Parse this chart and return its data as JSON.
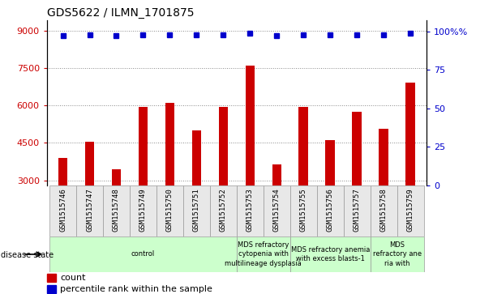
{
  "title": "GDS5622 / ILMN_1701875",
  "samples": [
    "GSM1515746",
    "GSM1515747",
    "GSM1515748",
    "GSM1515749",
    "GSM1515750",
    "GSM1515751",
    "GSM1515752",
    "GSM1515753",
    "GSM1515754",
    "GSM1515755",
    "GSM1515756",
    "GSM1515757",
    "GSM1515758",
    "GSM1515759"
  ],
  "counts": [
    3900,
    4550,
    3450,
    5950,
    6100,
    5000,
    5950,
    7600,
    3650,
    5950,
    4600,
    5750,
    5050,
    6900
  ],
  "percentile_ranks": [
    97,
    98,
    97,
    98,
    98,
    98,
    98,
    99,
    97,
    98,
    98,
    98,
    98,
    99
  ],
  "ylim_left": [
    2800,
    9400
  ],
  "ylim_right": [
    0,
    107
  ],
  "yticks_left": [
    3000,
    4500,
    6000,
    7500,
    9000
  ],
  "yticks_right": [
    0,
    25,
    50,
    75,
    100
  ],
  "bar_color": "#cc0000",
  "dot_color": "#0000cc",
  "bg_color": "#e8e8e8",
  "plot_bg": "white",
  "group_boundaries": [
    {
      "label": "control",
      "start": 0,
      "end": 7
    },
    {
      "label": "MDS refractory\ncytopenia with\nmultilineage dysplasia",
      "start": 7,
      "end": 9
    },
    {
      "label": "MDS refractory anemia\nwith excess blasts-1",
      "start": 9,
      "end": 12
    },
    {
      "label": "MDS\nrefractory ane\nria with",
      "start": 12,
      "end": 14
    }
  ],
  "group_color": "#ccffcc"
}
